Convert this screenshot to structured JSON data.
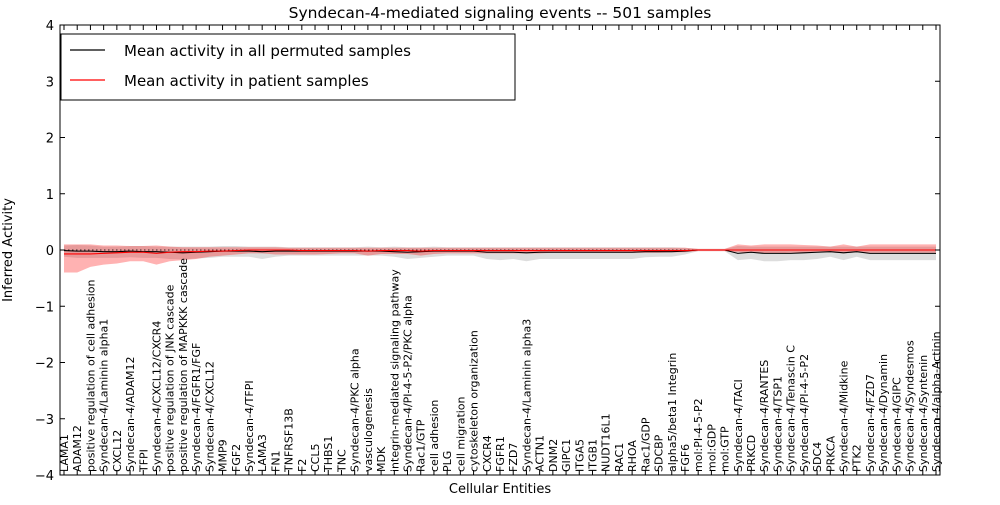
{
  "chart_data": {
    "type": "line",
    "title": "Syndecan-4-mediated signaling events -- 501 samples",
    "xlabel": "Cellular Entities",
    "ylabel": "Inferred Activity",
    "ylim": [
      -4,
      4
    ],
    "yticks": [
      -4,
      -3,
      -2,
      -1,
      0,
      1,
      2,
      3,
      4
    ],
    "ytick_labels": [
      "−4",
      "−3",
      "−2",
      "−1",
      "0",
      "1",
      "2",
      "3",
      "4"
    ],
    "legend_position": "upper-left",
    "categories": [
      "LAMA1",
      "ADAM12",
      "positive regulation of cell adhesion",
      "Syndecan-4/Laminin alpha1",
      "CXCL12",
      "Syndecan-4/ADAM12",
      "TFPI",
      "Syndecan-4/CXCL12/CXCR4",
      "positive regulation of JNK cascade",
      "positive regulation of MAPKKK cascade",
      "Syndecan-4/FGFR1/FGF",
      "Syndecan-4/CXCL12",
      "MMP9",
      "FGF2",
      "Syndecan-4/TFPI",
      "LAMA3",
      "FN1",
      "TNFRSF13B",
      "F2",
      "CCL5",
      "THBS1",
      "TNC",
      "Syndecan-4/PKC alpha",
      "vasculogenesis",
      "MDK",
      "integrin-mediated signaling pathway",
      "Syndecan-4/PI-4-5-P2/PKC alpha",
      "Rac1/GTP",
      "cell adhesion",
      "PLG",
      "cell migration",
      "cytoskeleton organization",
      "CXCR4",
      "FGFR1",
      "FZD7",
      "Syndecan-4/Laminin alpha3",
      "ACTN1",
      "DNM2",
      "GIPC1",
      "ITGA5",
      "ITGB1",
      "NUDT16L1",
      "RAC1",
      "RHOA",
      "Rac1/GDP",
      "SDCBP",
      "alpha5/beta1 Integrin",
      "FGF6",
      "mol:PI-4-5-P2",
      "mol:GDP",
      "mol:GTP",
      "Syndecan-4/TACI",
      "PRKCD",
      "Syndecan-4/RANTES",
      "Syndecan-4/TSP1",
      "Syndecan-4/Tenascin C",
      "Syndecan-4/PI-4-5-P2",
      "SDC4",
      "PRKCA",
      "Syndecan-4/Midkine",
      "PTK2",
      "Syndecan-4/FZD7",
      "Syndecan-4/Dynamin",
      "Syndecan-4/GIPC",
      "Syndecan-4/Syndesmos",
      "Syndecan-4/Syntenin",
      "Syndecan-4/alpha-Actinin"
    ],
    "series": [
      {
        "name": "Mean activity in all permuted samples",
        "color": "#000000",
        "values": [
          -0.01,
          -0.02,
          -0.02,
          -0.03,
          -0.03,
          -0.02,
          -0.03,
          -0.03,
          -0.04,
          -0.05,
          -0.04,
          -0.03,
          -0.02,
          -0.02,
          -0.02,
          -0.03,
          -0.02,
          -0.02,
          -0.02,
          -0.02,
          -0.02,
          -0.02,
          -0.02,
          -0.02,
          -0.02,
          -0.03,
          -0.04,
          -0.03,
          -0.02,
          -0.02,
          -0.02,
          -0.02,
          -0.04,
          -0.04,
          -0.04,
          -0.05,
          -0.04,
          -0.04,
          -0.04,
          -0.04,
          -0.04,
          -0.04,
          -0.04,
          -0.04,
          -0.03,
          -0.03,
          -0.03,
          -0.02,
          0.0,
          0.0,
          0.0,
          -0.06,
          -0.04,
          -0.06,
          -0.06,
          -0.06,
          -0.05,
          -0.04,
          -0.03,
          -0.05,
          -0.03,
          -0.06,
          -0.06,
          -0.06,
          -0.06,
          -0.06,
          -0.06
        ],
        "lower": [
          -0.12,
          -0.14,
          -0.14,
          -0.14,
          -0.14,
          -0.13,
          -0.14,
          -0.14,
          -0.16,
          -0.17,
          -0.15,
          -0.14,
          -0.12,
          -0.12,
          -0.12,
          -0.16,
          -0.12,
          -0.1,
          -0.1,
          -0.1,
          -0.1,
          -0.1,
          -0.1,
          -0.1,
          -0.1,
          -0.12,
          -0.16,
          -0.14,
          -0.12,
          -0.1,
          -0.1,
          -0.1,
          -0.16,
          -0.18,
          -0.16,
          -0.2,
          -0.16,
          -0.16,
          -0.16,
          -0.16,
          -0.16,
          -0.16,
          -0.16,
          -0.16,
          -0.13,
          -0.12,
          -0.12,
          -0.08,
          -0.02,
          -0.02,
          -0.02,
          -0.18,
          -0.16,
          -0.2,
          -0.2,
          -0.18,
          -0.18,
          -0.16,
          -0.12,
          -0.18,
          -0.12,
          -0.18,
          -0.18,
          -0.18,
          -0.18,
          -0.18,
          -0.18
        ],
        "upper": [
          0.08,
          0.09,
          0.08,
          0.06,
          0.06,
          0.07,
          0.07,
          0.06,
          0.06,
          0.06,
          0.06,
          0.06,
          0.07,
          0.07,
          0.06,
          0.06,
          0.06,
          0.05,
          0.05,
          0.05,
          0.05,
          0.05,
          0.05,
          0.06,
          0.05,
          0.06,
          0.05,
          0.05,
          0.06,
          0.05,
          0.05,
          0.05,
          0.05,
          0.05,
          0.05,
          0.05,
          0.05,
          0.05,
          0.05,
          0.05,
          0.05,
          0.05,
          0.05,
          0.05,
          0.05,
          0.05,
          0.05,
          0.04,
          0.02,
          0.02,
          0.02,
          0.07,
          0.06,
          0.06,
          0.06,
          0.06,
          0.06,
          0.06,
          0.06,
          0.06,
          0.06,
          0.06,
          0.06,
          0.06,
          0.06,
          0.06,
          0.06
        ]
      },
      {
        "name": "Mean activity in patient samples",
        "color": "#ff0000",
        "values": [
          -0.07,
          -0.07,
          -0.07,
          -0.06,
          -0.05,
          -0.04,
          -0.04,
          -0.06,
          -0.04,
          -0.03,
          -0.03,
          -0.02,
          -0.02,
          -0.01,
          0.0,
          0.0,
          0.0,
          0.0,
          -0.01,
          -0.01,
          -0.01,
          -0.01,
          -0.01,
          -0.02,
          -0.01,
          -0.01,
          -0.01,
          -0.02,
          -0.01,
          -0.01,
          -0.01,
          -0.01,
          -0.01,
          -0.01,
          -0.01,
          -0.01,
          -0.01,
          -0.01,
          -0.01,
          -0.01,
          -0.01,
          -0.01,
          -0.01,
          -0.01,
          -0.01,
          -0.01,
          -0.01,
          -0.01,
          0.0,
          0.0,
          0.0,
          0.0,
          0.0,
          0.0,
          0.0,
          0.0,
          0.0,
          0.0,
          0.0,
          0.0,
          0.0,
          0.0,
          0.0,
          0.0,
          0.0,
          0.0,
          0.0
        ],
        "lower": [
          -0.4,
          -0.4,
          -0.3,
          -0.26,
          -0.24,
          -0.2,
          -0.2,
          -0.26,
          -0.2,
          -0.18,
          -0.16,
          -0.12,
          -0.1,
          -0.08,
          -0.06,
          -0.06,
          -0.08,
          -0.08,
          -0.08,
          -0.08,
          -0.07,
          -0.06,
          -0.06,
          -0.1,
          -0.07,
          -0.07,
          -0.07,
          -0.1,
          -0.07,
          -0.06,
          -0.06,
          -0.06,
          -0.06,
          -0.06,
          -0.06,
          -0.06,
          -0.06,
          -0.05,
          -0.05,
          -0.05,
          -0.05,
          -0.05,
          -0.05,
          -0.05,
          -0.05,
          -0.05,
          -0.04,
          -0.04,
          -0.02,
          -0.02,
          -0.02,
          -0.04,
          -0.05,
          -0.06,
          -0.06,
          -0.05,
          -0.05,
          -0.04,
          -0.04,
          -0.06,
          -0.04,
          -0.05,
          -0.05,
          -0.05,
          -0.05,
          -0.05,
          -0.05
        ],
        "upper": [
          0.1,
          0.1,
          0.1,
          0.08,
          0.08,
          0.07,
          0.07,
          0.08,
          0.06,
          0.05,
          0.05,
          0.05,
          0.05,
          0.05,
          0.05,
          0.05,
          0.05,
          0.04,
          0.04,
          0.04,
          0.04,
          0.04,
          0.04,
          0.04,
          0.04,
          0.04,
          0.04,
          0.04,
          0.04,
          0.04,
          0.04,
          0.04,
          0.04,
          0.04,
          0.04,
          0.04,
          0.04,
          0.04,
          0.04,
          0.04,
          0.04,
          0.04,
          0.04,
          0.04,
          0.04,
          0.04,
          0.04,
          0.04,
          0.02,
          0.02,
          0.02,
          0.1,
          0.08,
          0.1,
          0.1,
          0.1,
          0.09,
          0.08,
          0.06,
          0.1,
          0.06,
          0.1,
          0.1,
          0.1,
          0.1,
          0.1,
          0.1
        ]
      }
    ]
  }
}
